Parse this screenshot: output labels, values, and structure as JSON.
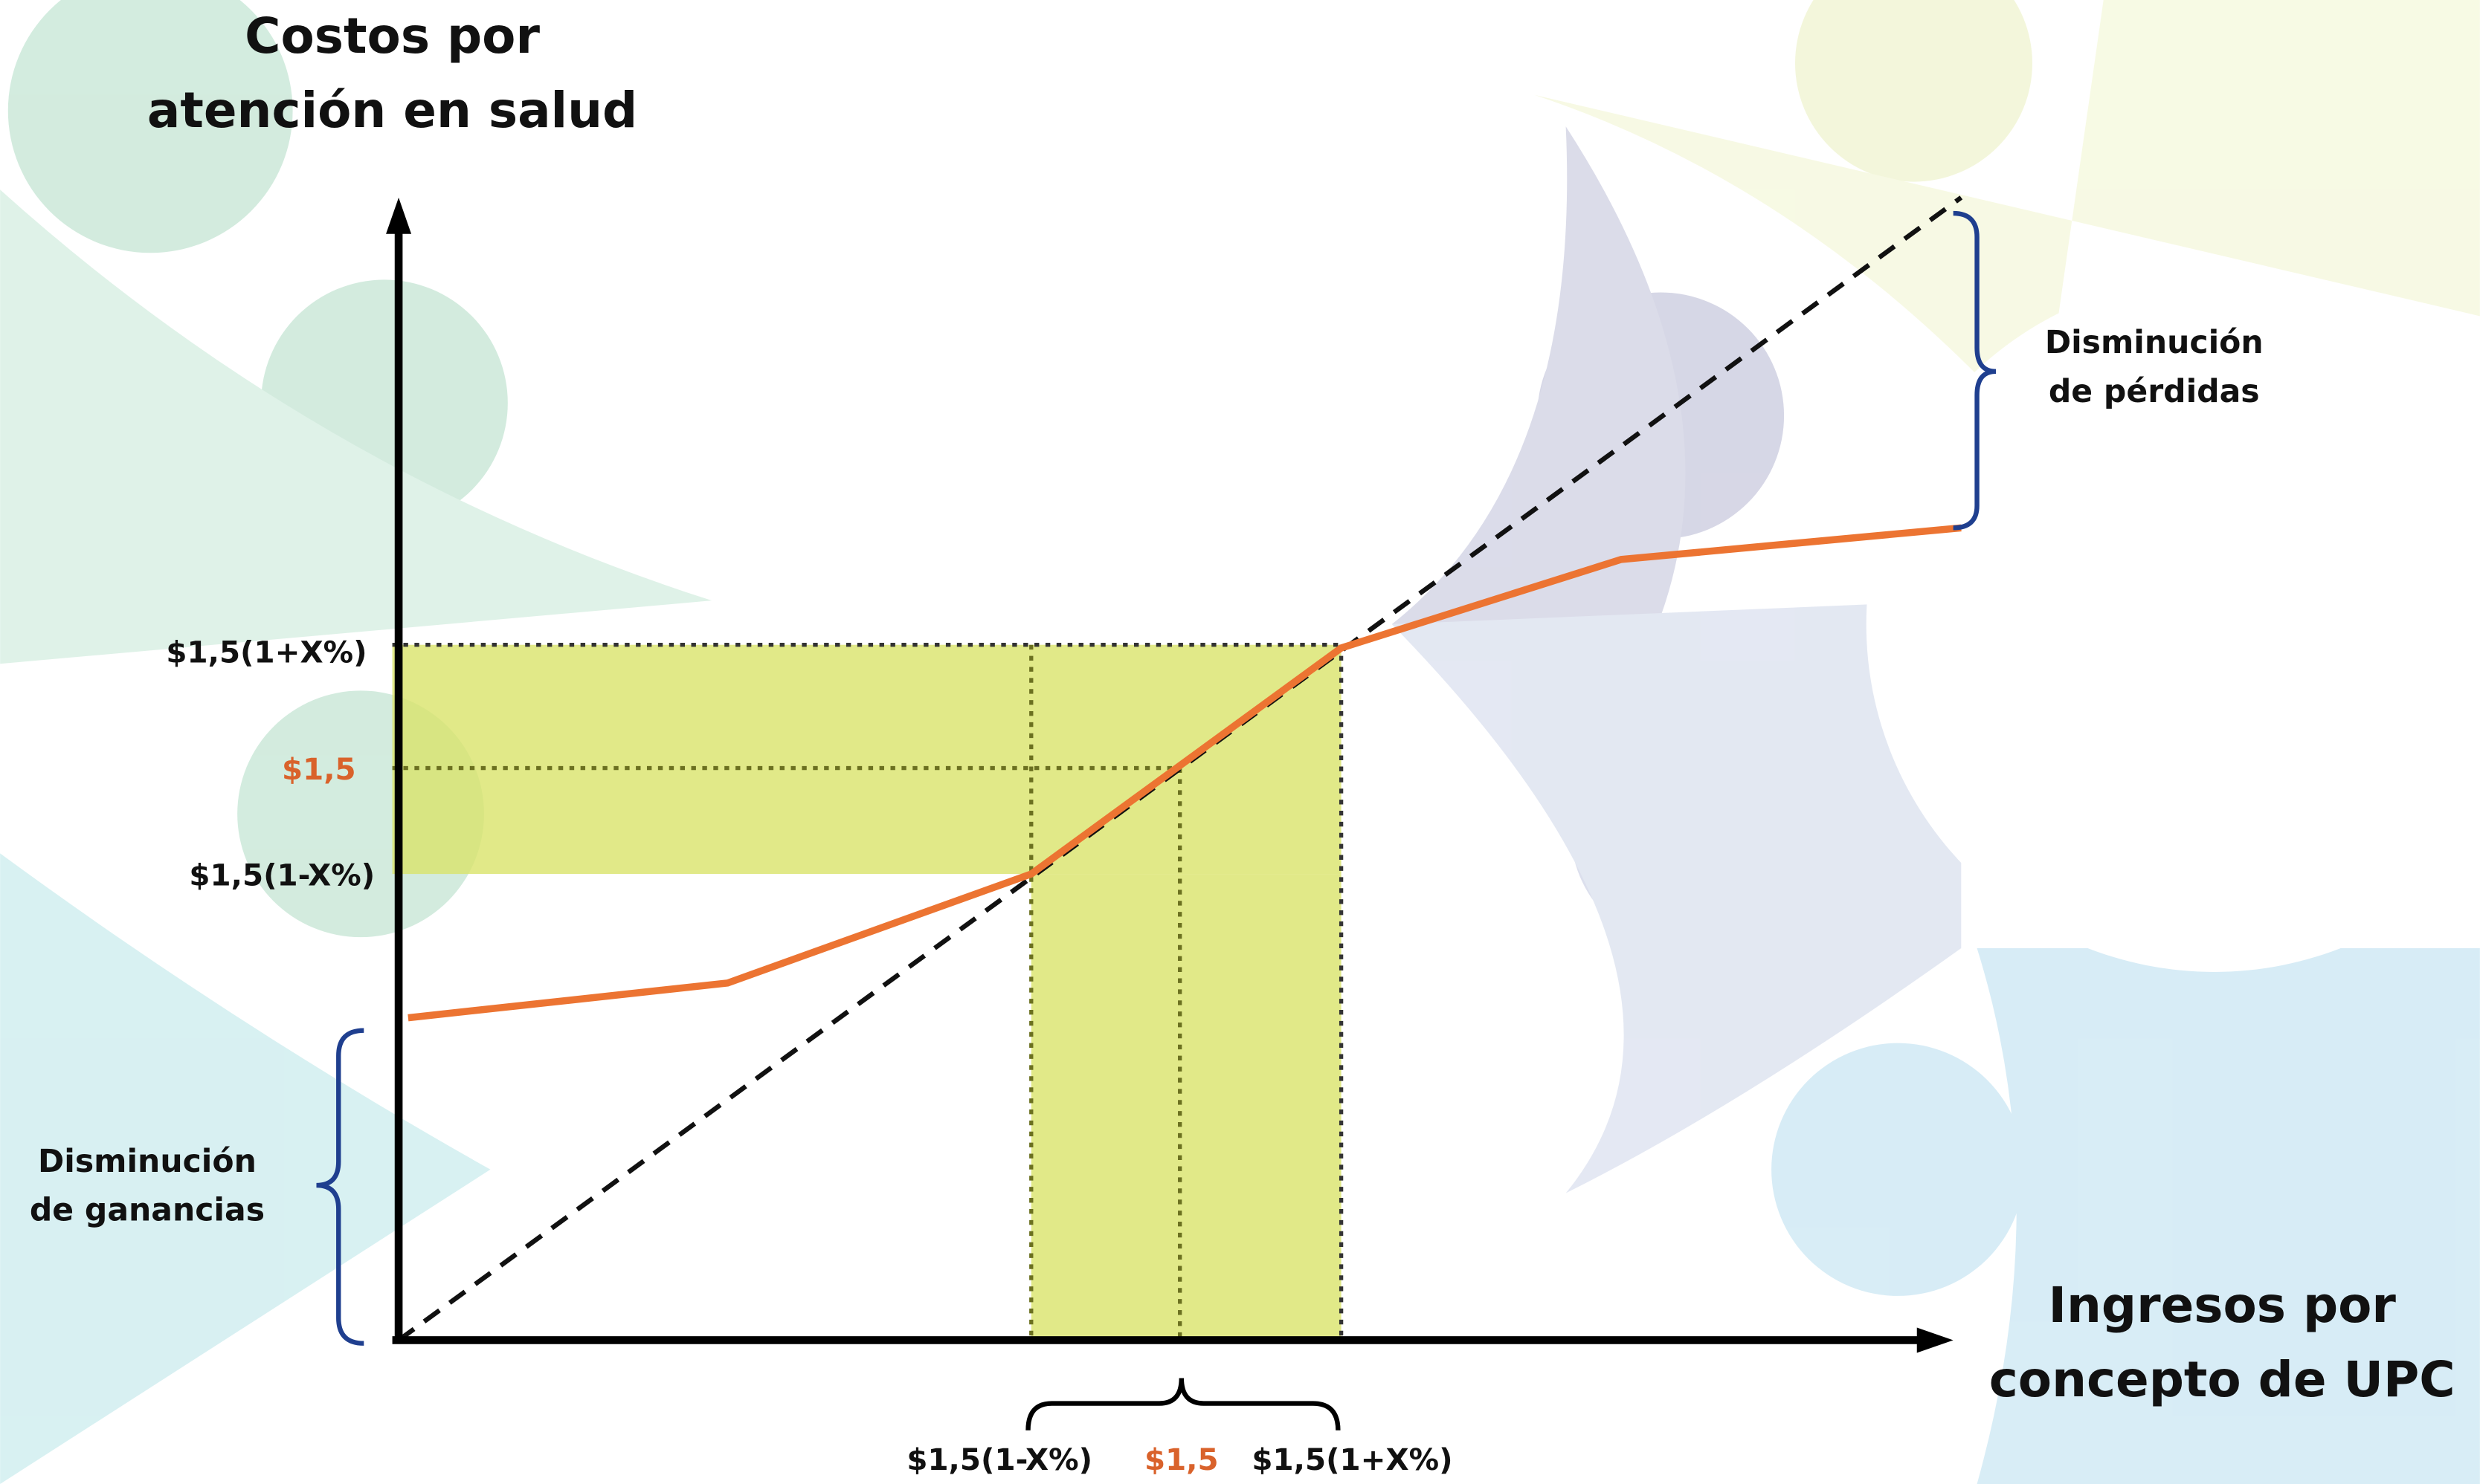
{
  "axes": {
    "y_title": [
      "Costos por",
      "atención en salud"
    ],
    "x_title": [
      "Ingresos por",
      "concepto de UPC"
    ]
  },
  "y_labels": [
    "$1,5(1+X%)",
    "$1,5",
    "$1,5(1-X%)"
  ],
  "x_labels": [
    "$1,5(1-X%)",
    "$1,5",
    "$1,5(1+X%)"
  ],
  "annotations": [
    [
      "Disminución",
      "de pérdidas"
    ],
    [
      "Disminución",
      "de ganancias"
    ]
  ]
}
